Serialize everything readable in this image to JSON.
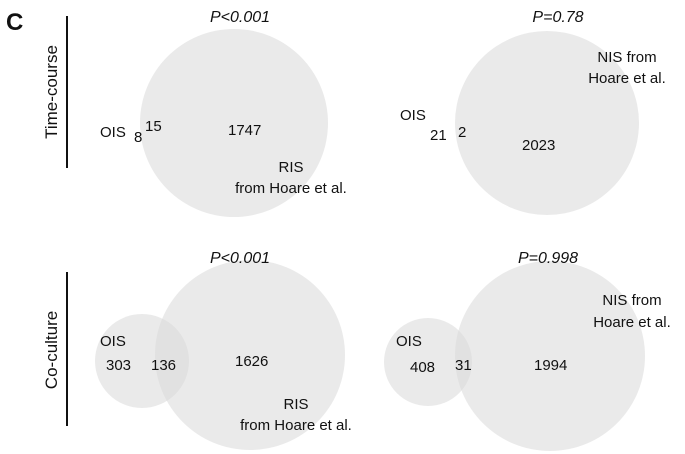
{
  "panel_letter": "C",
  "rows": [
    {
      "label": "Time-course"
    },
    {
      "label": "Co-culture"
    }
  ],
  "diagrams": [
    {
      "p_value": "P<0.001",
      "set_a": {
        "label": "OIS",
        "only_count": "8"
      },
      "overlap_count": "15",
      "set_b": {
        "label_line1": "RIS",
        "label_line2": "from Hoare et al.",
        "only_count": "1747"
      }
    },
    {
      "p_value": "P=0.78",
      "set_a": {
        "label": "OIS",
        "only_count": "21"
      },
      "overlap_count": "2",
      "set_b": {
        "label_line1": "NIS from",
        "label_line2": "Hoare et al.",
        "only_count": "2023"
      }
    },
    {
      "p_value": "P<0.001",
      "set_a": {
        "label": "OIS",
        "only_count": "303"
      },
      "overlap_count": "136",
      "set_b": {
        "label_line1": "RIS",
        "label_line2": "from Hoare et al.",
        "only_count": "1626"
      }
    },
    {
      "p_value": "P=0.998",
      "set_a": {
        "label": "OIS",
        "only_count": "408"
      },
      "overlap_count": "31",
      "set_b": {
        "label_line1": "NIS from",
        "label_line2": "Hoare et al.",
        "only_count": "1994"
      }
    }
  ],
  "colors": {
    "circle_fill": "#d9d9d9",
    "text": "#111111"
  }
}
